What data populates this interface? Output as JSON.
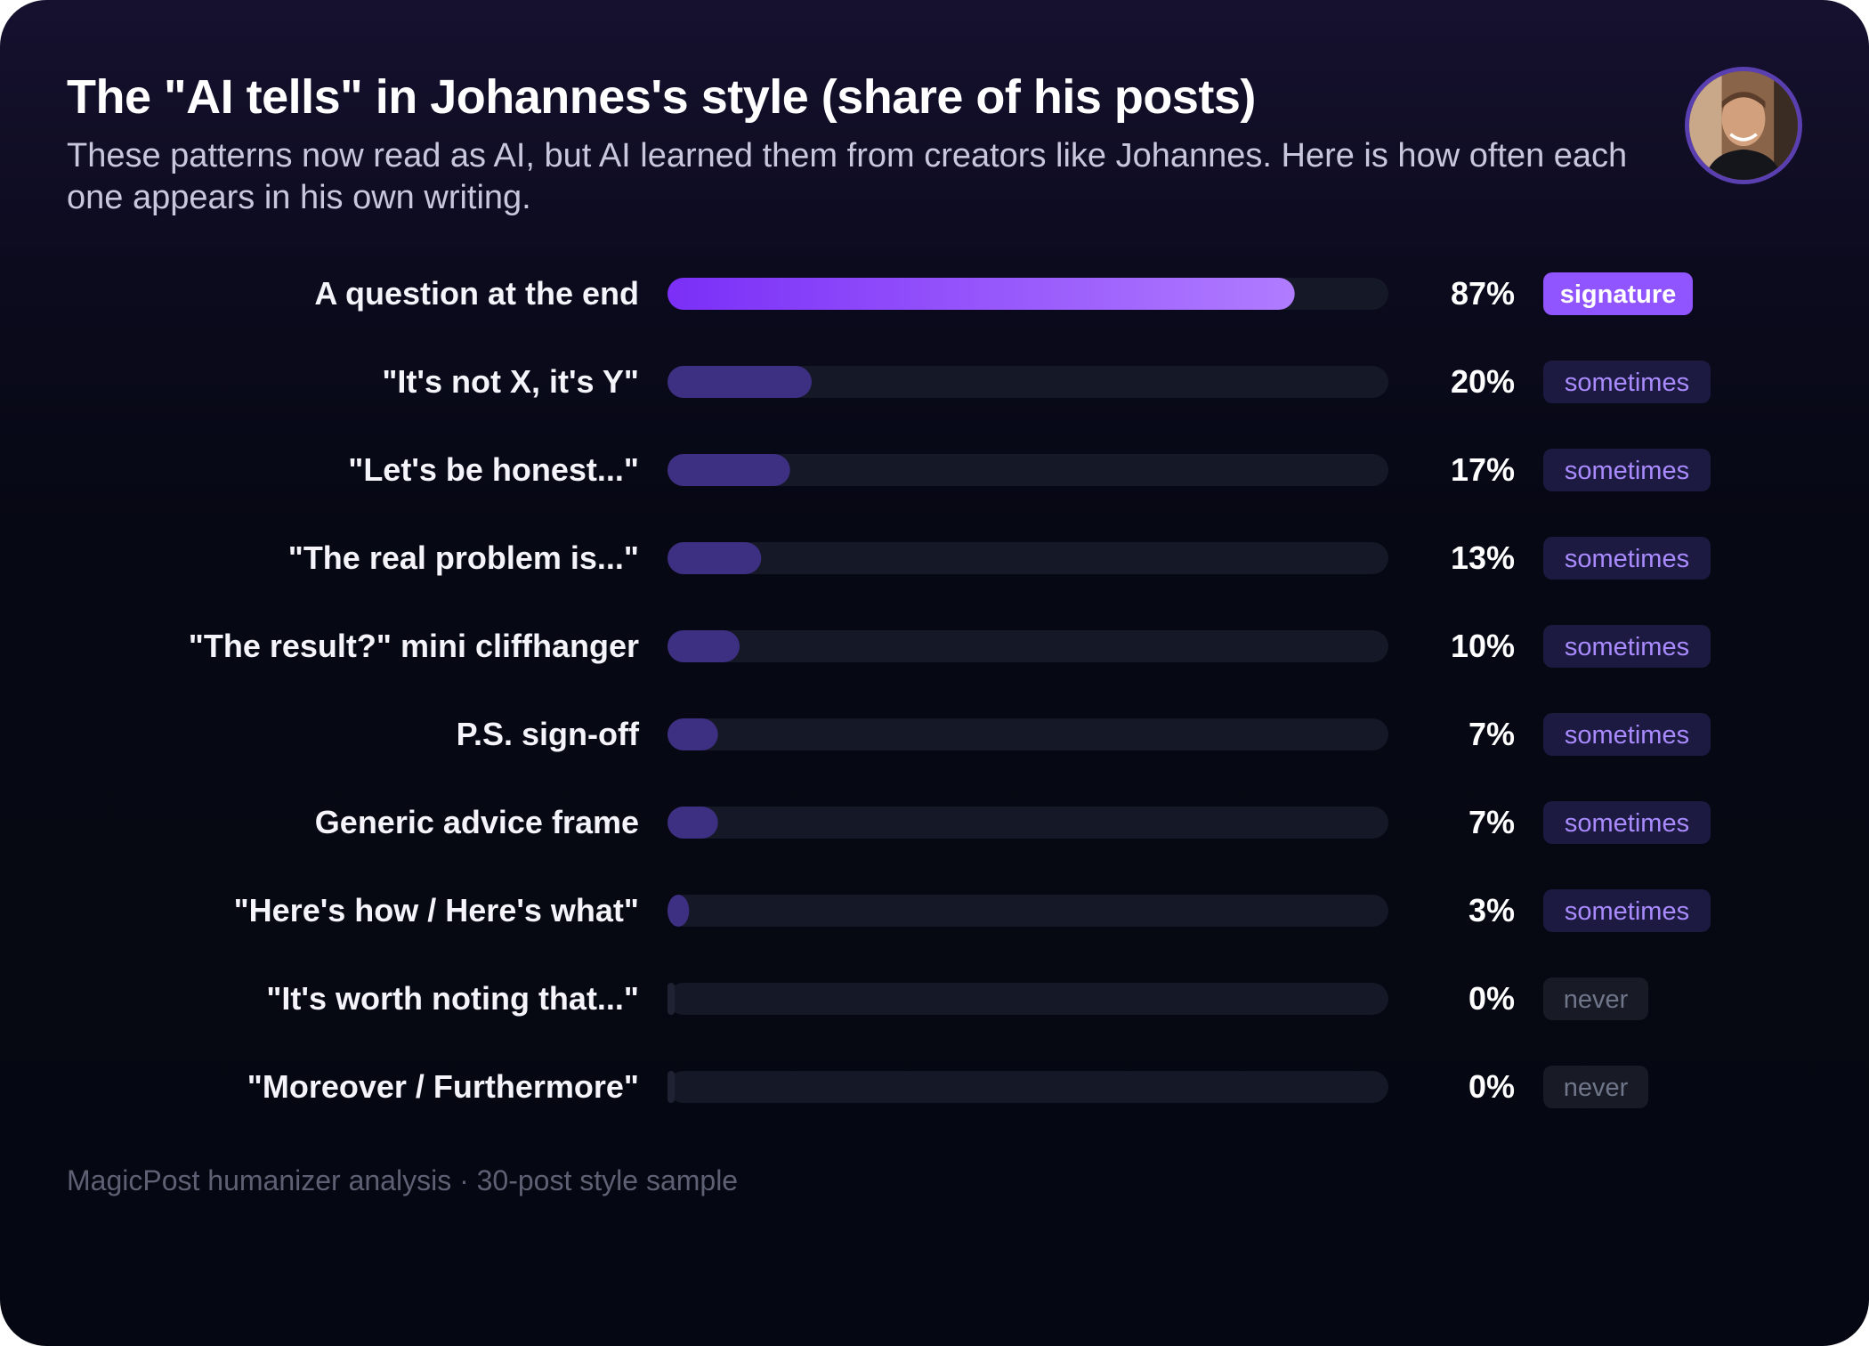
{
  "header": {
    "title": "The \"AI tells\" in Johannes's style (share of his posts)",
    "subtitle": "These patterns now read as AI, but AI learned them from creators like Johannes. Here is how often each one appears in his own writing."
  },
  "avatar": {
    "icon": "profile-photo"
  },
  "footer": {
    "text": "MagicPost humanizer analysis · 30-post style sample"
  },
  "colors": {
    "bar_highlight_start": "#7b2ff7",
    "bar_highlight_end": "#b07cff",
    "bar_normal": "#3d2f82",
    "track": "#151826",
    "badge_signature_bg": "#9055ff",
    "badge_signature_text": "#ffffff",
    "badge_sometimes_bg": "#1c1a40",
    "badge_sometimes_text": "#a98bff",
    "badge_never_bg": "#181b26",
    "badge_never_text": "#70768a"
  },
  "chart_data": {
    "type": "bar",
    "orientation": "horizontal",
    "xlim": [
      0,
      100
    ],
    "categories": [
      "A question at the end",
      "\"It's not X, it's Y\"",
      "\"Let's be honest...\"",
      "\"The real problem is...\"",
      "\"The result?\" mini cliffhanger",
      "P.S. sign-off",
      "Generic advice frame",
      "\"Here's how / Here's what\"",
      "\"It's worth noting that...\"",
      "\"Moreover / Furthermore\""
    ],
    "values": [
      87,
      20,
      17,
      13,
      10,
      7,
      7,
      3,
      0,
      0
    ],
    "value_labels": [
      "87%",
      "20%",
      "17%",
      "13%",
      "10%",
      "7%",
      "7%",
      "3%",
      "0%",
      "0%"
    ],
    "badges": [
      "signature",
      "sometimes",
      "sometimes",
      "sometimes",
      "sometimes",
      "sometimes",
      "sometimes",
      "sometimes",
      "never",
      "never"
    ],
    "grid": false,
    "legend": "none"
  }
}
